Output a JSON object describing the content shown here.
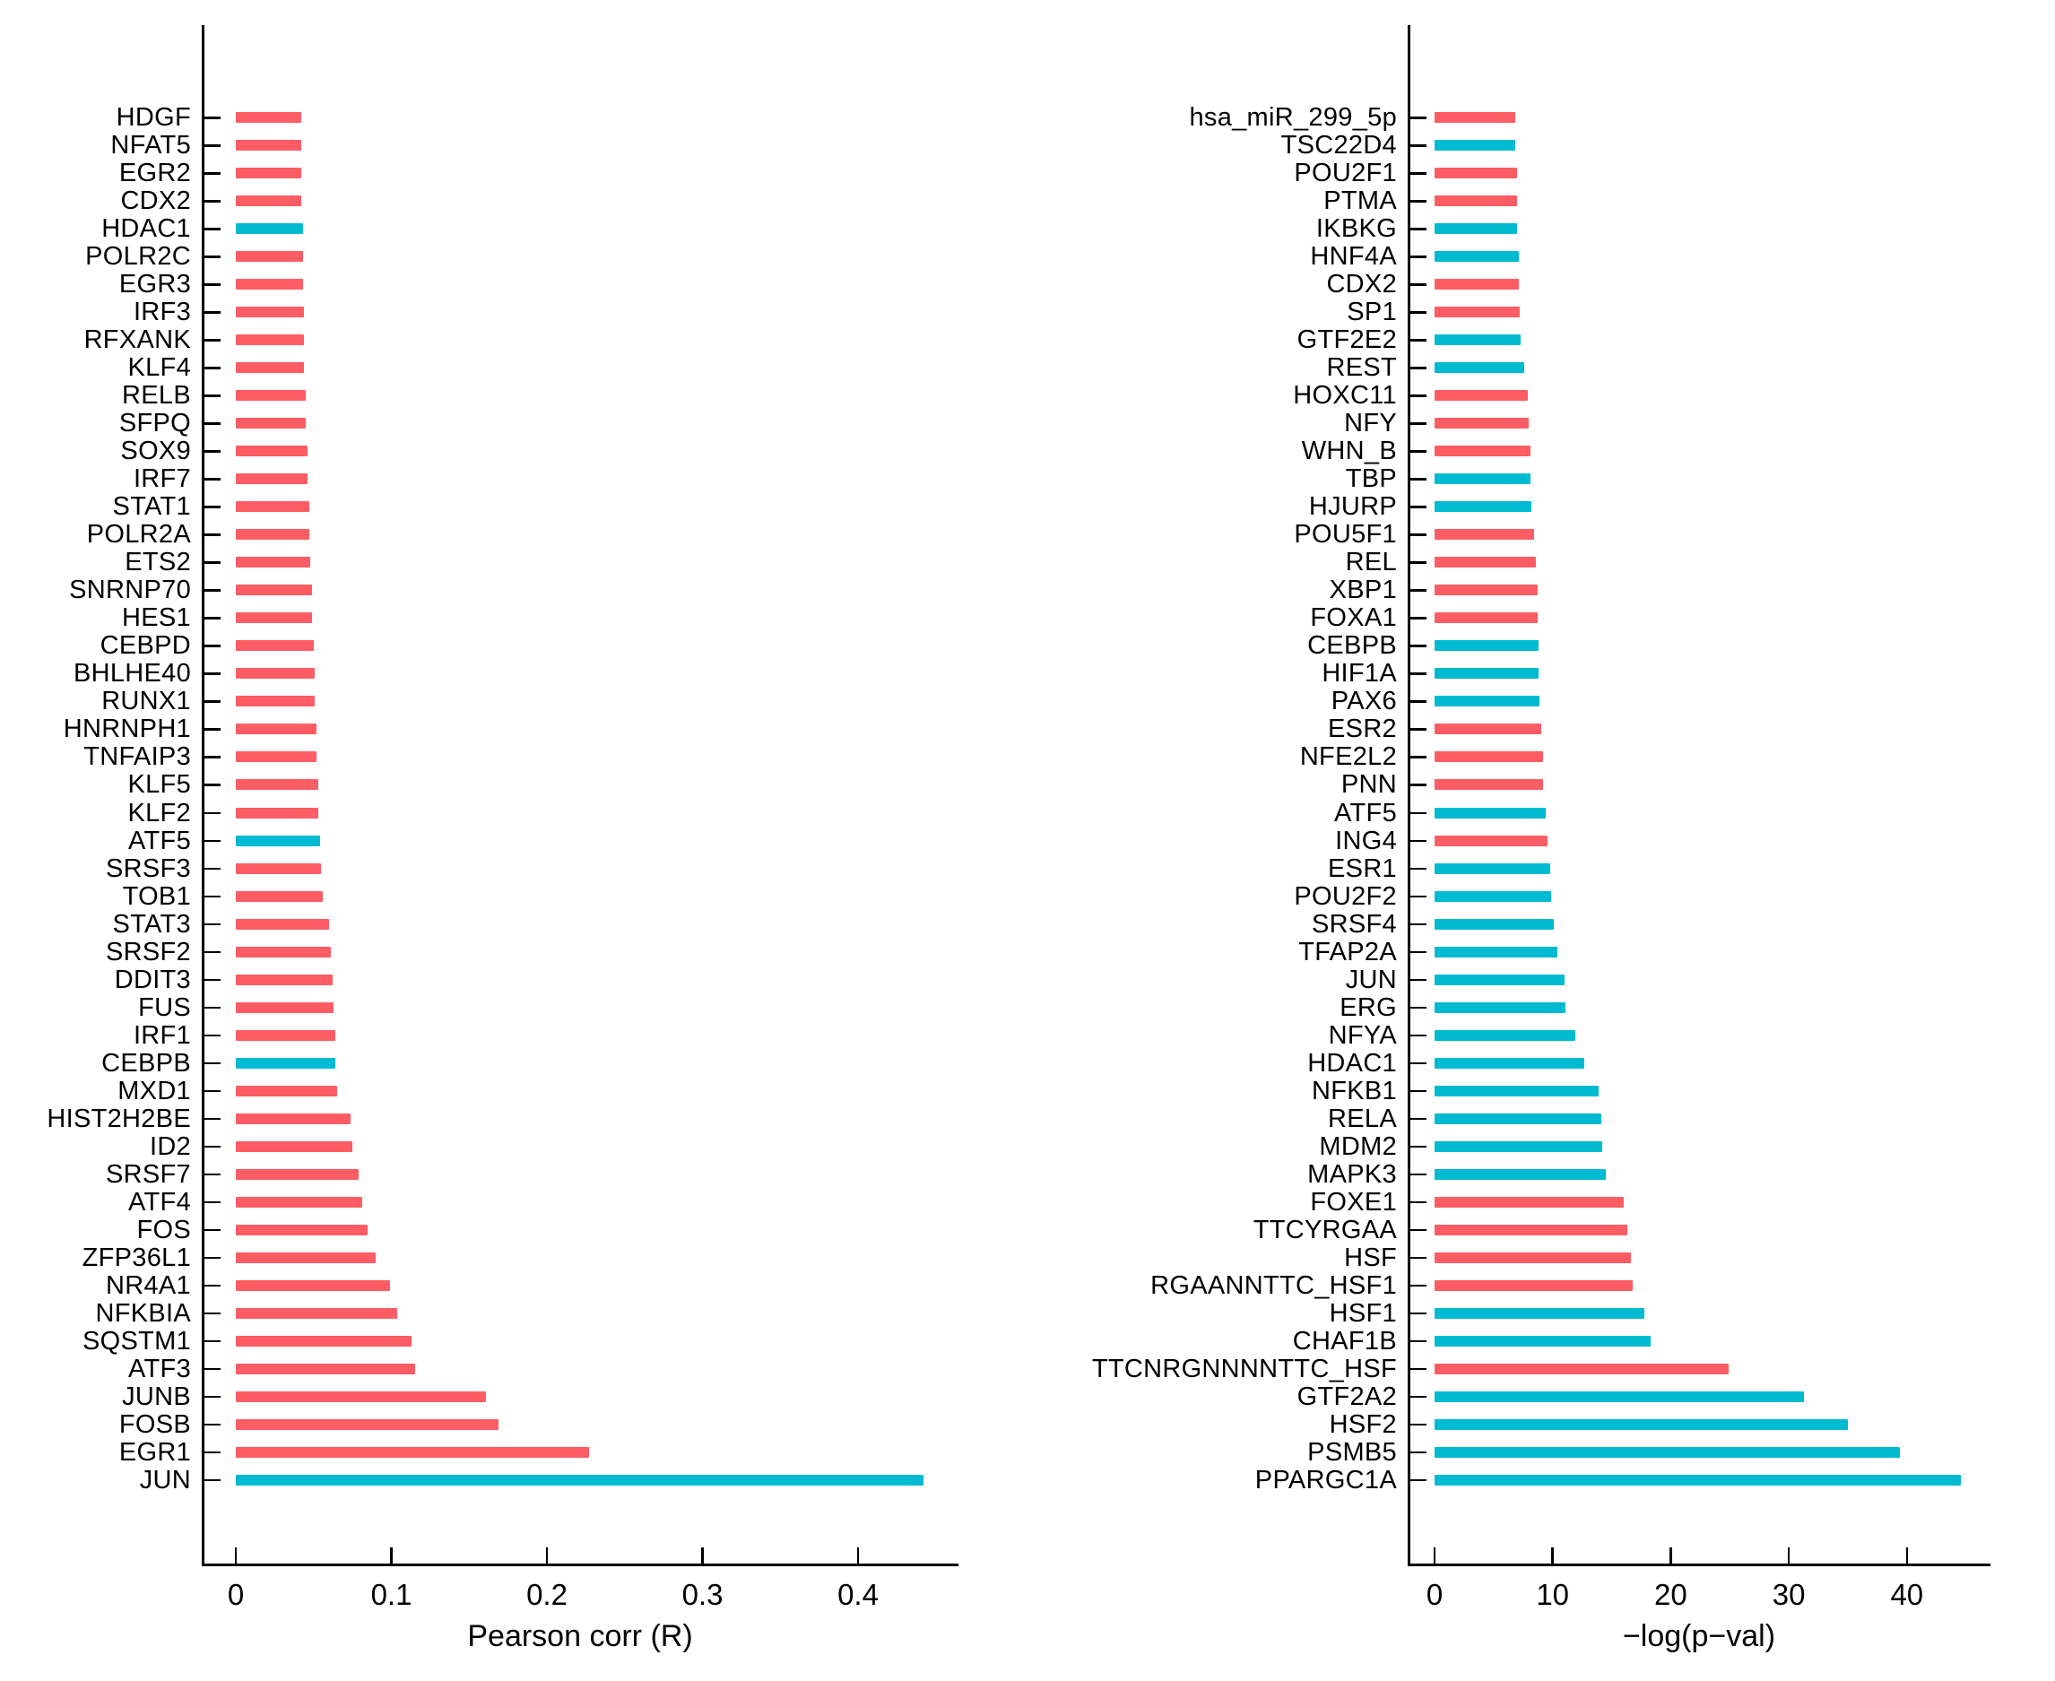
{
  "palette": {
    "red": "#FC5D65",
    "cyan": "#00BAD1",
    "axis": "#000000",
    "background": "#FFFFFF"
  },
  "chart_data": [
    {
      "type": "bar",
      "orientation": "horizontal",
      "title": "",
      "xlabel": "Pearson corr (R)",
      "ylabel": "",
      "xlim": [
        -0.022,
        0.465
      ],
      "xticks": [
        0,
        0.1,
        0.2,
        0.3,
        0.4
      ],
      "xtick_labels": [
        "0",
        "0.1",
        "0.2",
        "0.3",
        "0.4"
      ],
      "grid": false,
      "legend": null,
      "bars": [
        {
          "label": "HDGF",
          "value": 0.042,
          "color": "red"
        },
        {
          "label": "NFAT5",
          "value": 0.042,
          "color": "red"
        },
        {
          "label": "EGR2",
          "value": 0.042,
          "color": "red"
        },
        {
          "label": "CDX2",
          "value": 0.042,
          "color": "red"
        },
        {
          "label": "HDAC1",
          "value": 0.043,
          "color": "cyan"
        },
        {
          "label": "POLR2C",
          "value": 0.043,
          "color": "red"
        },
        {
          "label": "EGR3",
          "value": 0.043,
          "color": "red"
        },
        {
          "label": "IRF3",
          "value": 0.044,
          "color": "red"
        },
        {
          "label": "RFXANK",
          "value": 0.044,
          "color": "red"
        },
        {
          "label": "KLF4",
          "value": 0.044,
          "color": "red"
        },
        {
          "label": "RELB",
          "value": 0.045,
          "color": "red"
        },
        {
          "label": "SFPQ",
          "value": 0.045,
          "color": "red"
        },
        {
          "label": "SOX9",
          "value": 0.046,
          "color": "red"
        },
        {
          "label": "IRF7",
          "value": 0.046,
          "color": "red"
        },
        {
          "label": "STAT1",
          "value": 0.047,
          "color": "red"
        },
        {
          "label": "POLR2A",
          "value": 0.047,
          "color": "red"
        },
        {
          "label": "ETS2",
          "value": 0.048,
          "color": "red"
        },
        {
          "label": "SNRNP70",
          "value": 0.049,
          "color": "red"
        },
        {
          "label": "HES1",
          "value": 0.049,
          "color": "red"
        },
        {
          "label": "CEBPD",
          "value": 0.05,
          "color": "red"
        },
        {
          "label": "BHLHE40",
          "value": 0.051,
          "color": "red"
        },
        {
          "label": "RUNX1",
          "value": 0.051,
          "color": "red"
        },
        {
          "label": "HNRNPH1",
          "value": 0.052,
          "color": "red"
        },
        {
          "label": "TNFAIP3",
          "value": 0.052,
          "color": "red"
        },
        {
          "label": "KLF5",
          "value": 0.053,
          "color": "red"
        },
        {
          "label": "KLF2",
          "value": 0.053,
          "color": "red"
        },
        {
          "label": "ATF5",
          "value": 0.054,
          "color": "cyan"
        },
        {
          "label": "SRSF3",
          "value": 0.055,
          "color": "red"
        },
        {
          "label": "TOB1",
          "value": 0.056,
          "color": "red"
        },
        {
          "label": "STAT3",
          "value": 0.06,
          "color": "red"
        },
        {
          "label": "SRSF2",
          "value": 0.061,
          "color": "red"
        },
        {
          "label": "DDIT3",
          "value": 0.062,
          "color": "red"
        },
        {
          "label": "FUS",
          "value": 0.063,
          "color": "red"
        },
        {
          "label": "IRF1",
          "value": 0.064,
          "color": "red"
        },
        {
          "label": "CEBPB",
          "value": 0.064,
          "color": "cyan"
        },
        {
          "label": "MXD1",
          "value": 0.065,
          "color": "red"
        },
        {
          "label": "HIST2H2BE",
          "value": 0.074,
          "color": "red"
        },
        {
          "label": "ID2",
          "value": 0.075,
          "color": "red"
        },
        {
          "label": "SRSF7",
          "value": 0.079,
          "color": "red"
        },
        {
          "label": "ATF4",
          "value": 0.081,
          "color": "red"
        },
        {
          "label": "FOS",
          "value": 0.085,
          "color": "red"
        },
        {
          "label": "ZFP36L1",
          "value": 0.09,
          "color": "red"
        },
        {
          "label": "NR4A1",
          "value": 0.099,
          "color": "red"
        },
        {
          "label": "NFKBIA",
          "value": 0.104,
          "color": "red"
        },
        {
          "label": "SQSTM1",
          "value": 0.113,
          "color": "red"
        },
        {
          "label": "ATF3",
          "value": 0.115,
          "color": "red"
        },
        {
          "label": "JUNB",
          "value": 0.161,
          "color": "red"
        },
        {
          "label": "FOSB",
          "value": 0.169,
          "color": "red"
        },
        {
          "label": "EGR1",
          "value": 0.227,
          "color": "red"
        },
        {
          "label": "JUN",
          "value": 0.442,
          "color": "cyan"
        }
      ]
    },
    {
      "type": "bar",
      "orientation": "horizontal",
      "title": "",
      "xlabel": "−log(p−val)",
      "ylabel": "",
      "xlim": [
        -2.3,
        47.1
      ],
      "xticks": [
        0,
        10,
        20,
        30,
        40
      ],
      "xtick_labels": [
        "0",
        "10",
        "20",
        "30",
        "40"
      ],
      "grid": false,
      "legend": null,
      "bars": [
        {
          "label": "hsa_miR_299_5p",
          "value": 6.8,
          "color": "red"
        },
        {
          "label": "TSC22D4",
          "value": 6.8,
          "color": "cyan"
        },
        {
          "label": "POU2F1",
          "value": 7.0,
          "color": "red"
        },
        {
          "label": "PTMA",
          "value": 7.0,
          "color": "red"
        },
        {
          "label": "IKBKG",
          "value": 7.0,
          "color": "cyan"
        },
        {
          "label": "HNF4A",
          "value": 7.1,
          "color": "cyan"
        },
        {
          "label": "CDX2",
          "value": 7.1,
          "color": "red"
        },
        {
          "label": "SP1",
          "value": 7.2,
          "color": "red"
        },
        {
          "label": "GTF2E2",
          "value": 7.3,
          "color": "cyan"
        },
        {
          "label": "REST",
          "value": 7.6,
          "color": "cyan"
        },
        {
          "label": "HOXC11",
          "value": 7.9,
          "color": "red"
        },
        {
          "label": "NFY",
          "value": 8.0,
          "color": "red"
        },
        {
          "label": "WHN_B",
          "value": 8.1,
          "color": "red"
        },
        {
          "label": "TBP",
          "value": 8.1,
          "color": "cyan"
        },
        {
          "label": "HJURP",
          "value": 8.2,
          "color": "cyan"
        },
        {
          "label": "POU5F1",
          "value": 8.4,
          "color": "red"
        },
        {
          "label": "REL",
          "value": 8.6,
          "color": "red"
        },
        {
          "label": "XBP1",
          "value": 8.7,
          "color": "red"
        },
        {
          "label": "FOXA1",
          "value": 8.7,
          "color": "red"
        },
        {
          "label": "CEBPB",
          "value": 8.8,
          "color": "cyan"
        },
        {
          "label": "HIF1A",
          "value": 8.8,
          "color": "cyan"
        },
        {
          "label": "PAX6",
          "value": 8.9,
          "color": "cyan"
        },
        {
          "label": "ESR2",
          "value": 9.0,
          "color": "red"
        },
        {
          "label": "NFE2L2",
          "value": 9.2,
          "color": "red"
        },
        {
          "label": "PNN",
          "value": 9.2,
          "color": "red"
        },
        {
          "label": "ATF5",
          "value": 9.4,
          "color": "cyan"
        },
        {
          "label": "ING4",
          "value": 9.6,
          "color": "red"
        },
        {
          "label": "ESR1",
          "value": 9.8,
          "color": "cyan"
        },
        {
          "label": "POU2F2",
          "value": 9.9,
          "color": "cyan"
        },
        {
          "label": "SRSF4",
          "value": 10.1,
          "color": "cyan"
        },
        {
          "label": "TFAP2A",
          "value": 10.4,
          "color": "cyan"
        },
        {
          "label": "JUN",
          "value": 11.0,
          "color": "cyan"
        },
        {
          "label": "ERG",
          "value": 11.1,
          "color": "cyan"
        },
        {
          "label": "NFYA",
          "value": 11.9,
          "color": "cyan"
        },
        {
          "label": "HDAC1",
          "value": 12.7,
          "color": "cyan"
        },
        {
          "label": "NFKB1",
          "value": 13.9,
          "color": "cyan"
        },
        {
          "label": "RELA",
          "value": 14.1,
          "color": "cyan"
        },
        {
          "label": "MDM2",
          "value": 14.2,
          "color": "cyan"
        },
        {
          "label": "MAPK3",
          "value": 14.5,
          "color": "cyan"
        },
        {
          "label": "FOXE1",
          "value": 16.0,
          "color": "red"
        },
        {
          "label": "TTCYRGAA",
          "value": 16.3,
          "color": "red"
        },
        {
          "label": "HSF",
          "value": 16.6,
          "color": "red"
        },
        {
          "label": "RGAANNTTC_HSF1",
          "value": 16.8,
          "color": "red"
        },
        {
          "label": "HSF1",
          "value": 17.8,
          "color": "cyan"
        },
        {
          "label": "CHAF1B",
          "value": 18.3,
          "color": "cyan"
        },
        {
          "label": "TTCNRGNNNNTTC_HSF",
          "value": 24.9,
          "color": "red"
        },
        {
          "label": "GTF2A2",
          "value": 31.3,
          "color": "cyan"
        },
        {
          "label": "HSF2",
          "value": 35.0,
          "color": "cyan"
        },
        {
          "label": "PSMB5",
          "value": 39.4,
          "color": "cyan"
        },
        {
          "label": "PPARGC1A",
          "value": 44.6,
          "color": "cyan"
        }
      ]
    }
  ]
}
